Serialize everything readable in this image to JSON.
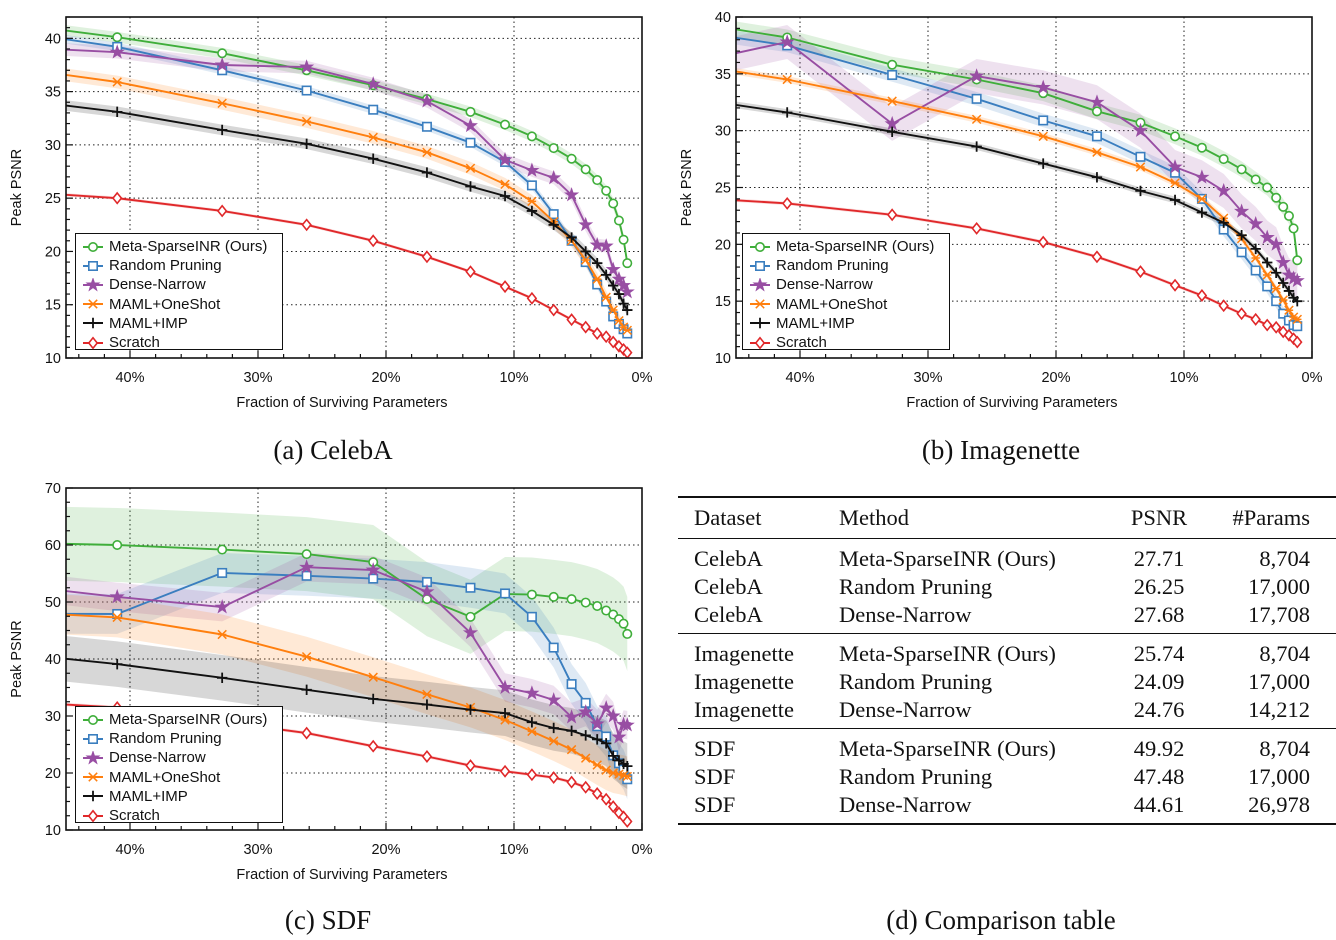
{
  "colors": {
    "Meta-SparseINR (Ours)": "#3fae3a",
    "Random Pruning": "#3a7ebf",
    "Dense-Narrow": "#984ea3",
    "MAML+OneShot": "#ff7f0e",
    "MAML+IMP": "#111111",
    "Scratch": "#e0282a"
  },
  "markers": {
    "Meta-SparseINR (Ours)": "circle",
    "Random Pruning": "square",
    "Dense-Narrow": "star",
    "MAML+OneShot": "asterisk-x",
    "MAML+IMP": "plus",
    "Scratch": "diamond"
  },
  "chart_data": [
    {
      "type": "line",
      "caption": "(a) CelebA",
      "xlabel": "Fraction of Surviving Parameters",
      "ylabel": "Peak PSNR",
      "xlim": [
        45,
        0
      ],
      "ylim": [
        10,
        42
      ],
      "x_unit": "%",
      "xticks": [
        "40%",
        "30%",
        "20%",
        "10%",
        "0%"
      ],
      "xtick_values": [
        40,
        30,
        20,
        10,
        0
      ],
      "yticks": [
        "10",
        "15",
        "20",
        "25",
        "30",
        "35",
        "40"
      ],
      "ytick_values": [
        10,
        15,
        20,
        25,
        30,
        35,
        40
      ],
      "grid": "dotted",
      "legend": "bottom-left",
      "x": [
        51.2,
        41,
        32.8,
        26.2,
        21,
        16.8,
        13.4,
        10.7,
        8.6,
        6.9,
        5.5,
        4.4,
        3.5,
        2.8,
        2.25,
        1.8,
        1.44,
        1.15
      ],
      "series": [
        {
          "name": "Meta-SparseINR (Ours)",
          "band": 0.5,
          "values": [
            41.7,
            40.1,
            38.6,
            37.0,
            35.6,
            34.3,
            33.1,
            31.9,
            30.8,
            29.7,
            28.7,
            27.7,
            26.7,
            25.7,
            24.5,
            22.9,
            21.1,
            18.9
          ]
        },
        {
          "name": "Random Pruning",
          "band": 0.4,
          "values": [
            41.0,
            39.2,
            37.0,
            35.1,
            33.3,
            31.7,
            30.2,
            28.4,
            26.2,
            23.5,
            21.0,
            19.0,
            16.9,
            15.3,
            13.9,
            13.2,
            12.7,
            12.3
          ]
        },
        {
          "name": "Dense-Narrow",
          "band": 0.6,
          "values": [
            39.3,
            38.7,
            37.5,
            37.3,
            35.7,
            34.1,
            31.8,
            28.6,
            27.6,
            26.9,
            25.3,
            22.5,
            20.6,
            20.5,
            18.3,
            17.4,
            16.8,
            16.2
          ]
        },
        {
          "name": "MAML+OneShot",
          "band": 0.6,
          "values": [
            37.6,
            35.9,
            33.9,
            32.2,
            30.7,
            29.3,
            27.8,
            26.3,
            24.7,
            22.8,
            21.0,
            19.2,
            17.4,
            15.7,
            14.5,
            13.5,
            12.9,
            12.6
          ]
        },
        {
          "name": "MAML+IMP",
          "band": 0.5,
          "values": [
            34.6,
            33.1,
            31.4,
            30.1,
            28.7,
            27.4,
            26.1,
            25.2,
            23.8,
            22.5,
            21.3,
            20.0,
            18.9,
            17.8,
            16.8,
            16.0,
            15.1,
            14.5
          ]
        },
        {
          "name": "Scratch",
          "band": 0.15,
          "values": [
            25.8,
            25.0,
            23.8,
            22.5,
            21.0,
            19.5,
            18.1,
            16.7,
            15.6,
            14.5,
            13.6,
            12.9,
            12.3,
            12.0,
            11.5,
            11.1,
            10.8,
            10.5
          ]
        }
      ]
    },
    {
      "type": "line",
      "caption": "(b) Imagenette",
      "xlabel": "Fraction of Surviving Parameters",
      "ylabel": "Peak PSNR",
      "xlim": [
        45,
        0
      ],
      "ylim": [
        10,
        40
      ],
      "x_unit": "%",
      "xticks": [
        "40%",
        "30%",
        "20%",
        "10%",
        "0%"
      ],
      "xtick_values": [
        40,
        30,
        20,
        10,
        0
      ],
      "yticks": [
        "10",
        "15",
        "20",
        "25",
        "30",
        "35",
        "40"
      ],
      "ytick_values": [
        10,
        15,
        20,
        25,
        30,
        35,
        40
      ],
      "grid": "dotted",
      "legend": "bottom-left",
      "x": [
        51.2,
        41,
        32.8,
        26.2,
        21,
        16.8,
        13.4,
        10.7,
        8.6,
        6.9,
        5.5,
        4.4,
        3.5,
        2.8,
        2.25,
        1.8,
        1.44,
        1.15
      ],
      "series": [
        {
          "name": "Meta-SparseINR (Ours)",
          "band": 0.7,
          "values": [
            40.0,
            38.2,
            35.8,
            34.5,
            33.3,
            31.7,
            30.7,
            29.5,
            28.5,
            27.5,
            26.6,
            25.7,
            25.0,
            24.1,
            23.3,
            22.5,
            21.4,
            18.6
          ]
        },
        {
          "name": "Random Pruning",
          "band": 0.6,
          "values": [
            39.2,
            37.5,
            34.9,
            32.8,
            30.9,
            29.5,
            27.7,
            26.3,
            24.0,
            21.3,
            19.3,
            17.7,
            16.3,
            15.0,
            13.9,
            13.3,
            12.9,
            12.8
          ]
        },
        {
          "name": "Dense-Narrow",
          "band": 1.5,
          "values": [
            35.3,
            37.8,
            30.6,
            34.8,
            33.8,
            32.5,
            30.0,
            26.8,
            25.9,
            24.7,
            22.9,
            21.8,
            20.6,
            20.0,
            18.4,
            17.3,
            17.0,
            16.8
          ]
        },
        {
          "name": "MAML+OneShot",
          "band": 0.3,
          "values": [
            36.3,
            34.5,
            32.6,
            31.0,
            29.5,
            28.1,
            26.8,
            25.4,
            24.0,
            22.3,
            20.5,
            18.8,
            17.3,
            16.1,
            15.1,
            14.2,
            13.6,
            13.4
          ]
        },
        {
          "name": "MAML+IMP",
          "band": 0.3,
          "values": [
            33.3,
            31.6,
            29.9,
            28.6,
            27.1,
            25.9,
            24.7,
            23.9,
            22.8,
            21.9,
            20.8,
            19.6,
            18.4,
            17.5,
            16.6,
            15.9,
            15.3,
            15.0
          ]
        },
        {
          "name": "Scratch",
          "band": 0.15,
          "values": [
            24.3,
            23.6,
            22.6,
            21.4,
            20.2,
            18.9,
            17.6,
            16.4,
            15.5,
            14.6,
            13.9,
            13.4,
            12.9,
            12.7,
            12.3,
            12.0,
            11.7,
            11.4
          ]
        }
      ]
    },
    {
      "type": "line",
      "caption": "(c) SDF",
      "xlabel": "Fraction of Surviving Parameters",
      "ylabel": "Peak PSNR",
      "xlim": [
        45,
        0
      ],
      "ylim": [
        10,
        70
      ],
      "x_unit": "%",
      "xticks": [
        "40%",
        "30%",
        "20%",
        "10%",
        "0%"
      ],
      "xtick_values": [
        40,
        30,
        20,
        10,
        0
      ],
      "yticks": [
        "10",
        "20",
        "30",
        "40",
        "50",
        "60",
        "70"
      ],
      "ytick_values": [
        10,
        20,
        30,
        40,
        50,
        60,
        70
      ],
      "grid": "dotted",
      "legend": "bottom-left",
      "x": [
        51.2,
        41,
        32.8,
        26.2,
        21,
        16.8,
        13.4,
        10.7,
        8.6,
        6.9,
        5.5,
        4.4,
        3.5,
        2.8,
        2.25,
        1.8,
        1.44,
        1.15
      ],
      "series": [
        {
          "name": "Meta-SparseINR (Ours)",
          "band": 6.5,
          "values": [
            60.5,
            60.0,
            59.2,
            58.4,
            57.0,
            50.5,
            47.4,
            51.4,
            51.3,
            50.9,
            50.5,
            49.9,
            49.3,
            48.5,
            47.8,
            47.0,
            46.2,
            44.4
          ]
        },
        {
          "name": "Random Pruning",
          "band": 3.5,
          "values": [
            48.0,
            47.9,
            55.1,
            54.6,
            54.1,
            53.5,
            52.5,
            51.5,
            47.4,
            42.0,
            35.6,
            32.3,
            28.2,
            26.4,
            23.1,
            21.7,
            20.6,
            18.9
          ]
        },
        {
          "name": "Dense-Narrow",
          "band": 2.5,
          "values": [
            53.5,
            50.9,
            49.1,
            56.1,
            55.6,
            51.8,
            44.6,
            35.0,
            34.0,
            32.8,
            29.8,
            30.7,
            28.6,
            31.4,
            30.0,
            26.3,
            28.5,
            28.4
          ]
        },
        {
          "name": "MAML+OneShot",
          "band": 3.5,
          "values": [
            48.5,
            47.3,
            44.3,
            40.4,
            36.8,
            33.8,
            31.5,
            29.3,
            27.3,
            25.6,
            24.1,
            22.6,
            21.4,
            20.5,
            20.0,
            19.8,
            19.6,
            19.4
          ]
        },
        {
          "name": "MAML+IMP",
          "band": 4.0,
          "values": [
            41.5,
            39.1,
            36.7,
            34.6,
            33.0,
            32.0,
            31.1,
            30.5,
            28.9,
            27.9,
            27.4,
            26.6,
            25.9,
            25.2,
            23.0,
            22.2,
            21.6,
            21.2
          ]
        },
        {
          "name": "Scratch",
          "band": 0.3,
          "values": [
            32.8,
            31.5,
            29.0,
            27.0,
            24.7,
            22.9,
            21.3,
            20.3,
            19.7,
            19.2,
            18.4,
            17.5,
            16.4,
            15.4,
            14.1,
            13.0,
            12.3,
            11.5
          ]
        }
      ]
    }
  ],
  "table": {
    "caption": "(d) Comparison table",
    "headers": [
      "Dataset",
      "Method",
      "PSNR",
      "#Params"
    ],
    "groups": [
      [
        [
          "CelebA",
          "Meta-SparseINR (Ours)",
          "27.71",
          "8,704"
        ],
        [
          "CelebA",
          "Random Pruning",
          "26.25",
          "17,000"
        ],
        [
          "CelebA",
          "Dense-Narrow",
          "27.68",
          "17,708"
        ]
      ],
      [
        [
          "Imagenette",
          "Meta-SparseINR (Ours)",
          "25.74",
          "8,704"
        ],
        [
          "Imagenette",
          "Random Pruning",
          "24.09",
          "17,000"
        ],
        [
          "Imagenette",
          "Dense-Narrow",
          "24.76",
          "14,212"
        ]
      ],
      [
        [
          "SDF",
          "Meta-SparseINR (Ours)",
          "49.92",
          "8,704"
        ],
        [
          "SDF",
          "Random Pruning",
          "47.48",
          "17,000"
        ],
        [
          "SDF",
          "Dense-Narrow",
          "44.61",
          "26,978"
        ]
      ]
    ]
  }
}
